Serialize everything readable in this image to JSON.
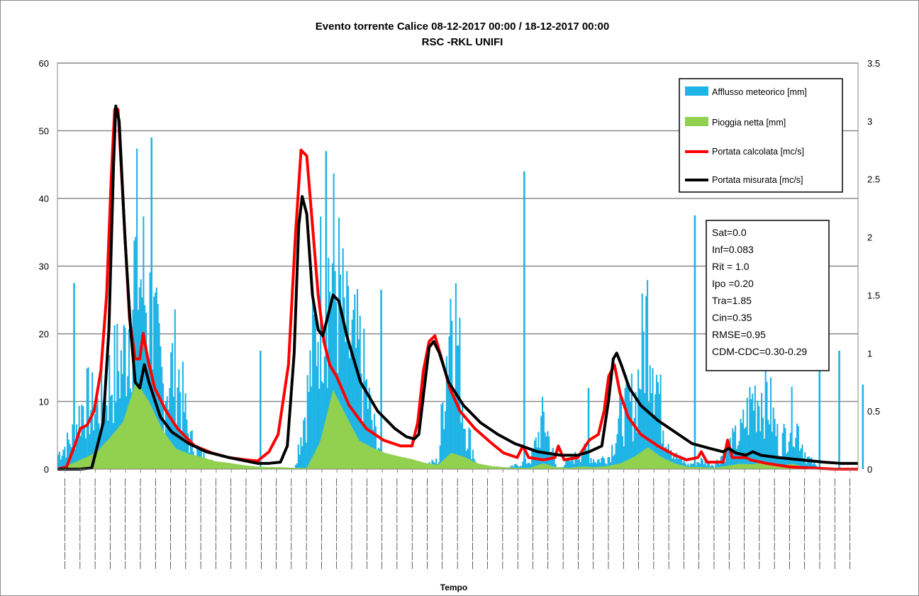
{
  "chart_data": {
    "type": "bar",
    "title": "Evento torrente Calice 08-12-2017 00:00 / 18-12-2017 00:00",
    "subtitle": "RSC -RKL UNIFI",
    "xlabel": "Tempo",
    "ylabel_left": "",
    "ylabel_right": "",
    "ylim_left": [
      0,
      60
    ],
    "ylim_right": [
      0,
      3.5
    ],
    "yticks_left": [
      "0",
      "10",
      "20",
      "30",
      "40",
      "50",
      "60"
    ],
    "yticks_right": [
      "0",
      "0.5",
      "1",
      "1.5",
      "2",
      "2.5",
      "3",
      "3.5"
    ],
    "grid": "horizontal",
    "legend_position": "top-right",
    "x": [
      0,
      1,
      2,
      3,
      4,
      5,
      6,
      7,
      8,
      9,
      10,
      11,
      12,
      13,
      14,
      15,
      16,
      17,
      18,
      19,
      20,
      21,
      22,
      23,
      24,
      25,
      26,
      27,
      28,
      29,
      30,
      31,
      32,
      33,
      34,
      35,
      36,
      37,
      38,
      39,
      40,
      41,
      42,
      43,
      44,
      45,
      46,
      47,
      48,
      49,
      50,
      51,
      52,
      53,
      54,
      55,
      56,
      57,
      58,
      59,
      60
    ],
    "series": [
      {
        "name": "Afflusso meteorico [mm]",
        "type": "bar",
        "axis": "left",
        "color": "#1fb4e6",
        "values": [
          3.5,
          7,
          16,
          14,
          21,
          26,
          49,
          36,
          19,
          25,
          7,
          3,
          1,
          0,
          0,
          0,
          0,
          0,
          0,
          17,
          41,
          47,
          30,
          26,
          10,
          0,
          0,
          0,
          1,
          2,
          44,
          11,
          0,
          0,
          0,
          1,
          2,
          12,
          0,
          2,
          4,
          2,
          3,
          13,
          16,
          38,
          12,
          3,
          1,
          2,
          1,
          5,
          8,
          17,
          18,
          5,
          13,
          3,
          0,
          0,
          0
        ],
        "peaks": [
          {
            "x": 1.2,
            "value": 27.5
          },
          {
            "x": 7.1,
            "value": 49
          },
          {
            "x": 15.4,
            "value": 17.5
          },
          {
            "x": 20.4,
            "value": 47
          },
          {
            "x": 24.6,
            "value": 26.5
          },
          {
            "x": 35.5,
            "value": 44
          },
          {
            "x": 48.5,
            "value": 37.5
          },
          {
            "x": 40.4,
            "value": 12
          },
          {
            "x": 58.0,
            "value": 16.5
          },
          {
            "x": 59.5,
            "value": 17.5
          },
          {
            "x": 61.3,
            "value": 12.5
          }
        ]
      },
      {
        "name": "Pioggia netta [mm]",
        "type": "area",
        "axis": "left",
        "color": "#92d050",
        "values": [
          0,
          1,
          2,
          3,
          5,
          8,
          14,
          10,
          6,
          4,
          3,
          2,
          1.5,
          1,
          0.8,
          0.5,
          0.4,
          0.3,
          0.2,
          0.2,
          5,
          12,
          8,
          6,
          4,
          3,
          2,
          1.5,
          1,
          0.8,
          3,
          2,
          1,
          0.5,
          0.3,
          0.2,
          0.2,
          1,
          0.3,
          0.2,
          0.5,
          0.3,
          0.5,
          1,
          2,
          3.5,
          2,
          1,
          0.5,
          0.3,
          0.2,
          0.5,
          0.8,
          1,
          1.2,
          0.5,
          1,
          0.3,
          0,
          0,
          0
        ]
      },
      {
        "name": "Portata calcolata [mc/s]",
        "type": "line",
        "axis": "right",
        "color": "#ff0000",
        "points": [
          [
            0,
            0
          ],
          [
            0.8,
            0.02
          ],
          [
            1.5,
            0.2
          ],
          [
            2,
            0.35
          ],
          [
            2.6,
            0.38
          ],
          [
            3.2,
            0.5
          ],
          [
            3.8,
            0.85
          ],
          [
            4.3,
            1.5
          ],
          [
            4.7,
            2.5
          ],
          [
            5.0,
            3.1
          ],
          [
            5.3,
            3.1
          ],
          [
            5.8,
            2.2
          ],
          [
            6.3,
            1.3
          ],
          [
            6.8,
            0.95
          ],
          [
            7.2,
            0.95
          ],
          [
            7.5,
            1.17
          ],
          [
            7.9,
            0.95
          ],
          [
            8.5,
            0.7
          ],
          [
            9.5,
            0.5
          ],
          [
            10.5,
            0.35
          ],
          [
            12,
            0.2
          ],
          [
            13.5,
            0.14
          ],
          [
            15,
            0.1
          ],
          [
            16.5,
            0.08
          ],
          [
            17.5,
            0.07
          ],
          [
            18.5,
            0.15
          ],
          [
            19.3,
            0.3
          ],
          [
            20.2,
            0.9
          ],
          [
            20.8,
            2.0
          ],
          [
            21.3,
            2.75
          ],
          [
            21.8,
            2.7
          ],
          [
            22.3,
            2.1
          ],
          [
            22.8,
            1.5
          ],
          [
            23.3,
            1.1
          ],
          [
            23.8,
            0.9
          ],
          [
            24.4,
            0.8
          ],
          [
            25.5,
            0.55
          ],
          [
            27,
            0.35
          ],
          [
            28.5,
            0.25
          ],
          [
            30,
            0.2
          ],
          [
            31,
            0.2
          ],
          [
            31.5,
            0.4
          ],
          [
            32,
            0.85
          ],
          [
            32.5,
            1.1
          ],
          [
            33.0,
            1.15
          ],
          [
            33.6,
            0.95
          ],
          [
            34.3,
            0.7
          ],
          [
            35.2,
            0.5
          ],
          [
            36.5,
            0.35
          ],
          [
            38,
            0.22
          ],
          [
            39,
            0.14
          ],
          [
            40.2,
            0.1
          ],
          [
            40.7,
            0.2
          ],
          [
            41.2,
            0.1
          ],
          [
            42.5,
            0.08
          ],
          [
            43.5,
            0.1
          ],
          [
            43.8,
            0.2
          ],
          [
            44.3,
            0.08
          ],
          [
            45.5,
            0.1
          ],
          [
            46.5,
            0.25
          ],
          [
            47.3,
            0.3
          ],
          [
            47.8,
            0.5
          ],
          [
            48.2,
            0.8
          ],
          [
            48.7,
            0.9
          ],
          [
            49.2,
            0.65
          ],
          [
            49.9,
            0.45
          ],
          [
            51,
            0.3
          ],
          [
            52.5,
            0.2
          ],
          [
            54,
            0.12
          ],
          [
            55,
            0.08
          ],
          [
            56,
            0.1
          ],
          [
            56.3,
            0.15
          ],
          [
            56.8,
            0.06
          ],
          [
            58.2,
            0.06
          ],
          [
            58.6,
            0.25
          ],
          [
            59.0,
            0.1
          ],
          [
            60.2,
            0.1
          ],
          [
            60.6,
            0.08
          ],
          [
            62,
            0.05
          ],
          [
            64,
            0.02
          ],
          [
            66,
            0.01
          ],
          [
            68,
            0.0
          ],
          [
            70,
            0.0
          ]
        ]
      },
      {
        "name": "Portata misurata [mc/s]",
        "type": "line",
        "axis": "right",
        "color": "#000000",
        "points": [
          [
            0,
            0
          ],
          [
            2.0,
            0
          ],
          [
            3.0,
            0.01
          ],
          [
            4.0,
            0.4
          ],
          [
            4.5,
            1.2
          ],
          [
            4.9,
            2.6
          ],
          [
            5.1,
            3.13
          ],
          [
            5.4,
            3.0
          ],
          [
            5.9,
            2.0
          ],
          [
            6.4,
            1.2
          ],
          [
            6.8,
            0.75
          ],
          [
            7.2,
            0.7
          ],
          [
            7.6,
            0.9
          ],
          [
            8.0,
            0.75
          ],
          [
            9.0,
            0.45
          ],
          [
            10.0,
            0.32
          ],
          [
            11.5,
            0.22
          ],
          [
            13,
            0.15
          ],
          [
            15,
            0.1
          ],
          [
            16.5,
            0.07
          ],
          [
            17.5,
            0.05
          ],
          [
            18.5,
            0.05
          ],
          [
            19.5,
            0.06
          ],
          [
            20.1,
            0.2
          ],
          [
            20.7,
            1.0
          ],
          [
            21.1,
            2.1
          ],
          [
            21.4,
            2.35
          ],
          [
            21.8,
            2.2
          ],
          [
            22.3,
            1.5
          ],
          [
            22.8,
            1.2
          ],
          [
            23.2,
            1.15
          ],
          [
            23.6,
            1.3
          ],
          [
            24.1,
            1.5
          ],
          [
            24.6,
            1.45
          ],
          [
            25.3,
            1.15
          ],
          [
            26.5,
            0.75
          ],
          [
            28,
            0.5
          ],
          [
            29.5,
            0.35
          ],
          [
            30.5,
            0.28
          ],
          [
            31.2,
            0.26
          ],
          [
            31.6,
            0.3
          ],
          [
            32.2,
            0.8
          ],
          [
            32.5,
            1.05
          ],
          [
            32.9,
            1.1
          ],
          [
            33.4,
            1.0
          ],
          [
            34.2,
            0.75
          ],
          [
            35.5,
            0.55
          ],
          [
            37,
            0.4
          ],
          [
            38.5,
            0.3
          ],
          [
            40,
            0.22
          ],
          [
            42,
            0.15
          ],
          [
            44,
            0.12
          ],
          [
            45.5,
            0.12
          ],
          [
            46.5,
            0.15
          ],
          [
            47.6,
            0.2
          ],
          [
            48.2,
            0.6
          ],
          [
            48.6,
            0.95
          ],
          [
            48.9,
            1.0
          ],
          [
            49.3,
            0.9
          ],
          [
            50,
            0.7
          ],
          [
            51,
            0.55
          ],
          [
            52.5,
            0.42
          ],
          [
            54,
            0.32
          ],
          [
            55.5,
            0.22
          ],
          [
            57,
            0.18
          ],
          [
            58.2,
            0.15
          ],
          [
            58.7,
            0.18
          ],
          [
            59.3,
            0.14
          ],
          [
            60.2,
            0.12
          ],
          [
            60.8,
            0.15
          ],
          [
            61.5,
            0.12
          ],
          [
            63,
            0.1
          ],
          [
            65,
            0.08
          ],
          [
            67,
            0.06
          ],
          [
            68.5,
            0.05
          ],
          [
            70,
            0.05
          ]
        ]
      }
    ],
    "parameters": [
      "Sat=0.0",
      "Inf=0.083",
      "Rit = 1.0",
      "Ipo =0.20",
      "Tra=1.85",
      "Cin=0.35",
      "RMSE=0.95",
      "CDM-CDC=0.30-0.29"
    ],
    "x_tick_count": 53
  }
}
